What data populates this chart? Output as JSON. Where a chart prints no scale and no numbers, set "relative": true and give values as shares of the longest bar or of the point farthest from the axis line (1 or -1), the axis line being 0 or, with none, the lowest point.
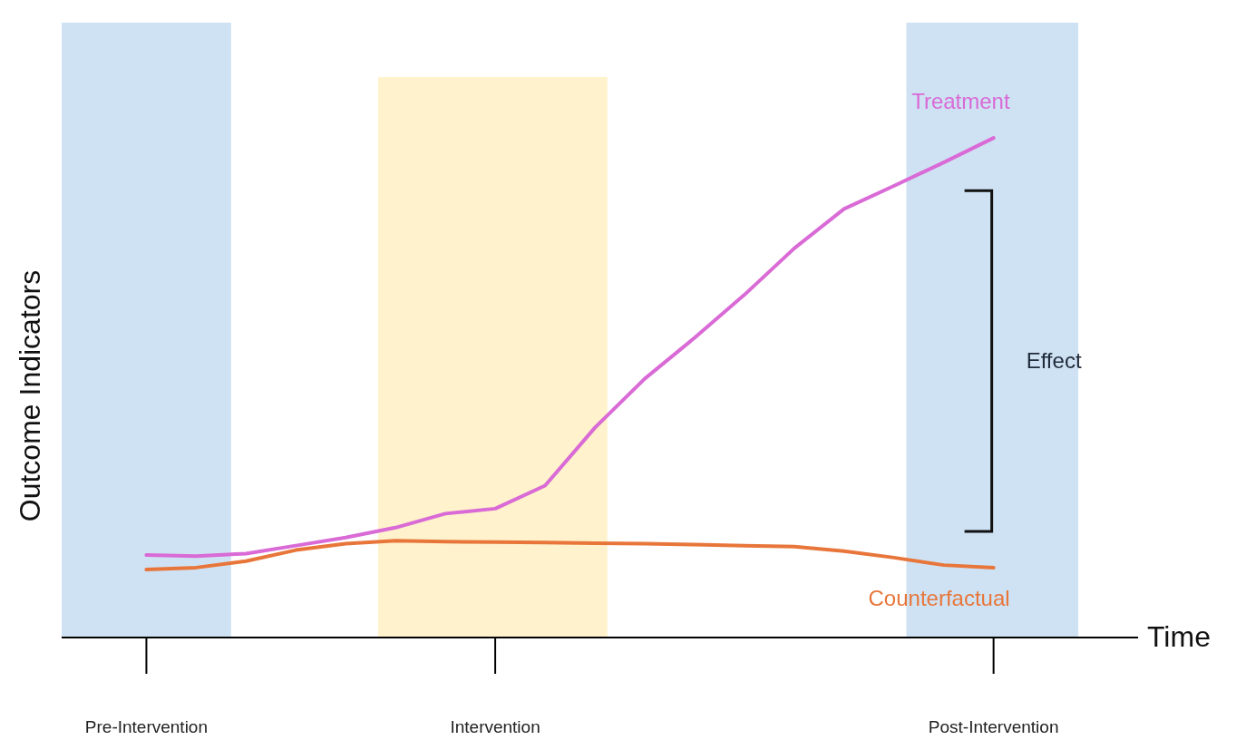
{
  "chart_data": {
    "type": "line",
    "relative": true,
    "xlabel": "Time",
    "ylabel": "Outcome Indicators",
    "categories": [
      "Pre-Intervention",
      null,
      null,
      null,
      null,
      null,
      null,
      "Intervention",
      null,
      null,
      null,
      null,
      null,
      null,
      null,
      null,
      null,
      "Post-Intervention"
    ],
    "series": [
      {
        "name": "Treatment",
        "color": "#d96ad6",
        "values": [
          0.165,
          0.163,
          0.168,
          0.184,
          0.2,
          0.22,
          0.248,
          0.258,
          0.304,
          0.42,
          0.518,
          0.6,
          0.686,
          0.779,
          0.858,
          0.904,
          0.951,
          1.0
        ]
      },
      {
        "name": "Counterfactual",
        "color": "#e8763a",
        "values": [
          0.136,
          0.14,
          0.153,
          0.175,
          0.188,
          0.194,
          0.192,
          0.191,
          0.19,
          0.189,
          0.188,
          0.186,
          0.184,
          0.182,
          0.173,
          0.16,
          0.145,
          0.14
        ]
      }
    ],
    "annotations": [
      "Effect"
    ],
    "grid": false,
    "marker": "none",
    "line_style": "solid"
  }
}
